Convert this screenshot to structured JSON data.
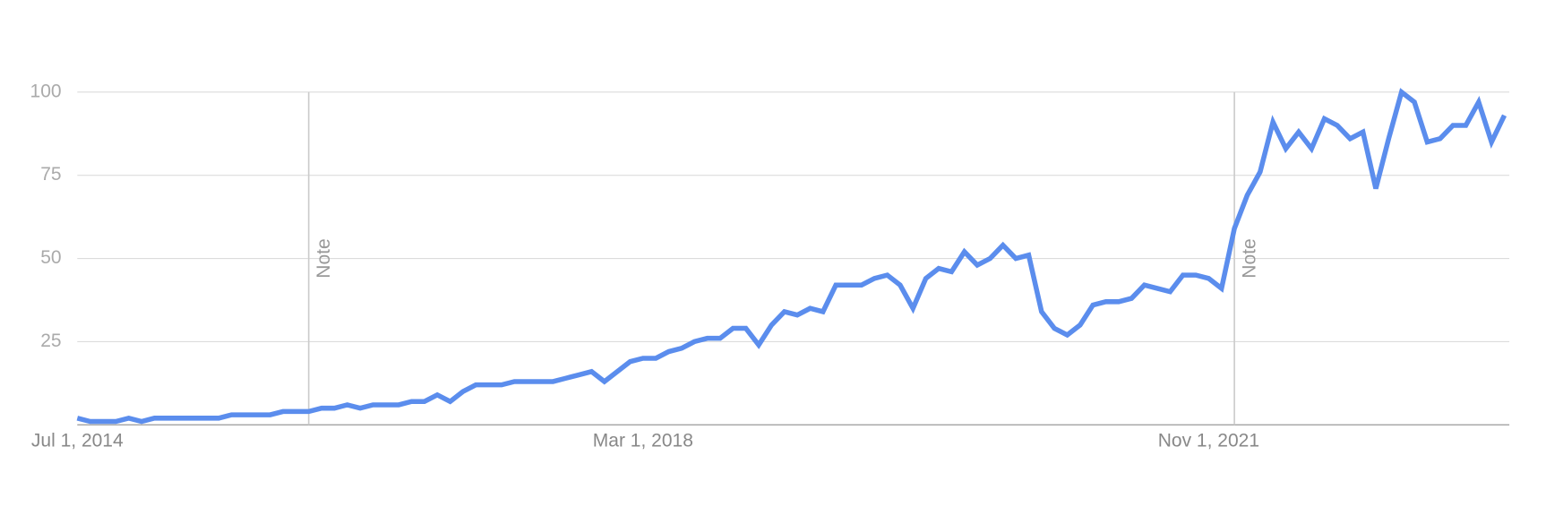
{
  "chart_data": {
    "type": "line",
    "categories": [
      "Jul 1, 2014",
      null,
      null,
      null,
      null,
      null,
      null,
      null,
      null,
      null,
      null,
      null,
      null,
      null,
      null,
      null,
      null,
      null,
      null,
      null,
      null,
      null,
      null,
      null,
      null,
      null,
      null,
      null,
      null,
      null,
      null,
      null,
      null,
      null,
      null,
      null,
      null,
      null,
      null,
      null,
      null,
      null,
      null,
      null,
      "Mar 1, 2018",
      null,
      null,
      null,
      null,
      null,
      null,
      null,
      null,
      null,
      null,
      null,
      null,
      null,
      null,
      null,
      null,
      null,
      null,
      null,
      null,
      null,
      null,
      null,
      null,
      null,
      null,
      null,
      null,
      null,
      null,
      null,
      null,
      null,
      null,
      null,
      null,
      null,
      null,
      null,
      null,
      null,
      null,
      null,
      "Nov 1, 2021",
      null,
      null,
      null,
      null,
      null,
      null,
      null,
      null,
      null,
      null,
      null,
      null,
      null,
      null,
      null,
      null,
      null,
      null,
      null,
      null,
      null,
      null,
      null
    ],
    "series": [
      {
        "name": null,
        "color": "#5b8ded",
        "values": [
          2,
          1,
          1,
          1,
          2,
          1,
          2,
          2,
          2,
          2,
          2,
          2,
          3,
          3,
          3,
          3,
          4,
          4,
          4,
          5,
          5,
          6,
          5,
          6,
          6,
          6,
          7,
          7,
          9,
          7,
          10,
          12,
          12,
          12,
          13,
          13,
          13,
          13,
          14,
          15,
          16,
          13,
          16,
          19,
          20,
          20,
          22,
          23,
          25,
          26,
          26,
          29,
          29,
          24,
          30,
          34,
          33,
          35,
          34,
          42,
          42,
          42,
          44,
          45,
          42,
          35,
          44,
          47,
          46,
          52,
          48,
          50,
          54,
          50,
          51,
          34,
          29,
          27,
          30,
          36,
          37,
          37,
          38,
          42,
          41,
          40,
          45,
          45,
          44,
          41,
          59,
          69,
          76,
          91,
          83,
          88,
          83,
          92,
          90,
          86,
          88,
          71,
          86,
          100,
          97,
          85,
          86,
          90,
          90,
          97,
          85,
          93
        ]
      }
    ],
    "ylim": [
      0,
      100
    ],
    "yticks": [
      25,
      50,
      75,
      100
    ],
    "grid": true,
    "annotations": [
      {
        "text": "Note",
        "at": 18
      },
      {
        "text": "Note",
        "at": 90
      }
    ]
  }
}
